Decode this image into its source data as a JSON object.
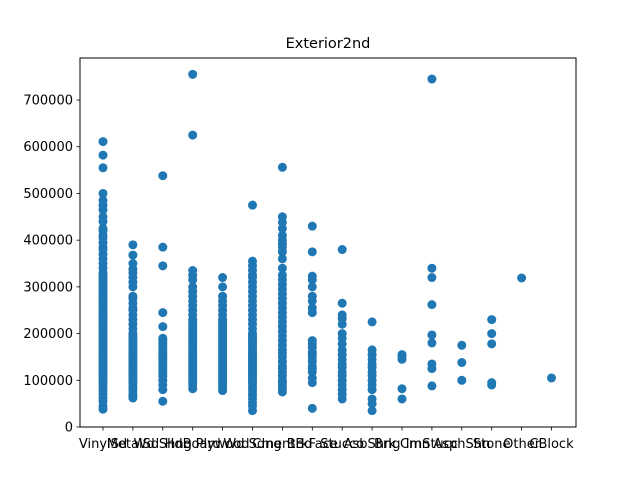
{
  "chart_data": {
    "type": "scatter",
    "title": "Exterior2nd",
    "xlabel": "",
    "ylabel": "",
    "ylim": [
      0,
      790000
    ],
    "y_ticks": [
      0,
      100000,
      200000,
      300000,
      400000,
      500000,
      600000,
      700000
    ],
    "y_tick_labels": [
      "0",
      "100000",
      "200000",
      "300000",
      "400000",
      "500000",
      "600000",
      "700000"
    ],
    "categories": [
      "VinylSd",
      "MetalSd",
      "Wd Shng",
      "HdBoard",
      "Plywood",
      "Wd Sdng",
      "CmentBd",
      "BrkFace",
      "Stucco",
      "AsbShng",
      "Brk Cmn",
      "ImStucc",
      "AsphShn",
      "Stone",
      "Other",
      "CBlock"
    ],
    "marker_color": "#1f77b4",
    "grid": false,
    "legend": "none",
    "points": {
      "VinylSd": [
        38000,
        45000,
        55000,
        62000,
        70000,
        78000,
        85000,
        92000,
        98000,
        105000,
        110000,
        115000,
        120000,
        125000,
        130000,
        135000,
        140000,
        145000,
        150000,
        155000,
        160000,
        165000,
        170000,
        175000,
        180000,
        185000,
        190000,
        195000,
        200000,
        205000,
        210000,
        215000,
        220000,
        225000,
        230000,
        235000,
        240000,
        245000,
        250000,
        255000,
        260000,
        265000,
        270000,
        275000,
        280000,
        285000,
        290000,
        295000,
        300000,
        305000,
        310000,
        315000,
        320000,
        325000,
        330000,
        340000,
        350000,
        360000,
        370000,
        380000,
        385000,
        395000,
        405000,
        410000,
        420000,
        425000,
        440000,
        450000,
        465000,
        475000,
        485000,
        500000,
        555000,
        582000,
        611000
      ],
      "MetalSd": [
        62000,
        68000,
        75000,
        82000,
        88000,
        95000,
        100000,
        105000,
        110000,
        115000,
        120000,
        125000,
        130000,
        135000,
        140000,
        145000,
        150000,
        155000,
        160000,
        165000,
        170000,
        175000,
        180000,
        185000,
        190000,
        195000,
        200000,
        210000,
        220000,
        230000,
        240000,
        250000,
        255000,
        265000,
        275000,
        280000,
        300000,
        310000,
        320000,
        330000,
        338000,
        350000,
        368000,
        390000
      ],
      "Wd Shng": [
        55000,
        80000,
        90000,
        100000,
        108000,
        115000,
        120000,
        125000,
        130000,
        135000,
        140000,
        145000,
        150000,
        155000,
        160000,
        165000,
        170000,
        175000,
        180000,
        185000,
        190000,
        215000,
        245000,
        345000,
        385000,
        538000
      ],
      "HdBoard": [
        82000,
        90000,
        95000,
        100000,
        105000,
        110000,
        115000,
        120000,
        125000,
        130000,
        135000,
        140000,
        145000,
        150000,
        155000,
        160000,
        165000,
        170000,
        175000,
        180000,
        185000,
        190000,
        195000,
        200000,
        205000,
        210000,
        215000,
        220000,
        225000,
        230000,
        240000,
        250000,
        260000,
        270000,
        280000,
        290000,
        300000,
        315000,
        325000,
        335000,
        625000,
        755000
      ],
      "Plywood": [
        78000,
        85000,
        90000,
        95000,
        100000,
        105000,
        110000,
        115000,
        120000,
        125000,
        130000,
        135000,
        140000,
        145000,
        150000,
        155000,
        160000,
        165000,
        170000,
        175000,
        180000,
        185000,
        190000,
        195000,
        200000,
        205000,
        210000,
        215000,
        220000,
        225000,
        230000,
        240000,
        250000,
        260000,
        270000,
        280000,
        300000,
        320000
      ],
      "Wd Sdng": [
        35000,
        45000,
        52000,
        60000,
        68000,
        75000,
        82000,
        88000,
        95000,
        100000,
        105000,
        110000,
        115000,
        120000,
        125000,
        130000,
        135000,
        140000,
        145000,
        150000,
        155000,
        160000,
        165000,
        170000,
        175000,
        180000,
        185000,
        190000,
        195000,
        200000,
        210000,
        220000,
        230000,
        240000,
        250000,
        260000,
        270000,
        280000,
        290000,
        300000,
        310000,
        320000,
        325000,
        335000,
        345000,
        355000,
        475000
      ],
      "CmentBd": [
        75000,
        82000,
        88000,
        95000,
        100000,
        110000,
        118000,
        125000,
        130000,
        140000,
        150000,
        158000,
        165000,
        175000,
        185000,
        195000,
        205000,
        215000,
        225000,
        235000,
        245000,
        255000,
        265000,
        275000,
        285000,
        295000,
        305000,
        315000,
        325000,
        340000,
        360000,
        375000,
        385000,
        392000,
        400000,
        410000,
        425000,
        438000,
        450000,
        556000
      ],
      "BrkFace": [
        40000,
        95000,
        105000,
        118000,
        125000,
        130000,
        140000,
        148000,
        155000,
        160000,
        170000,
        178000,
        185000,
        245000,
        255000,
        270000,
        280000,
        300000,
        315000,
        323000,
        375000,
        430000
      ],
      "Stucco": [
        60000,
        70000,
        80000,
        90000,
        100000,
        110000,
        118000,
        128000,
        135000,
        145000,
        155000,
        165000,
        178000,
        190000,
        200000,
        220000,
        232000,
        240000,
        265000,
        380000
      ],
      "AsbShng": [
        35000,
        50000,
        60000,
        80000,
        90000,
        100000,
        110000,
        118000,
        128000,
        135000,
        145000,
        155000,
        165000,
        225000
      ],
      "Brk Cmn": [
        60000,
        82000,
        145000,
        150000,
        155000
      ],
      "ImStucc": [
        88000,
        125000,
        135000,
        180000,
        197000,
        262000,
        320000,
        340000,
        745000
      ],
      "AsphShn": [
        100000,
        138000,
        175000
      ],
      "Stone": [
        90000,
        95000,
        178000,
        200000,
        230000
      ],
      "Other": [
        319000
      ],
      "CBlock": [
        105000
      ]
    }
  }
}
